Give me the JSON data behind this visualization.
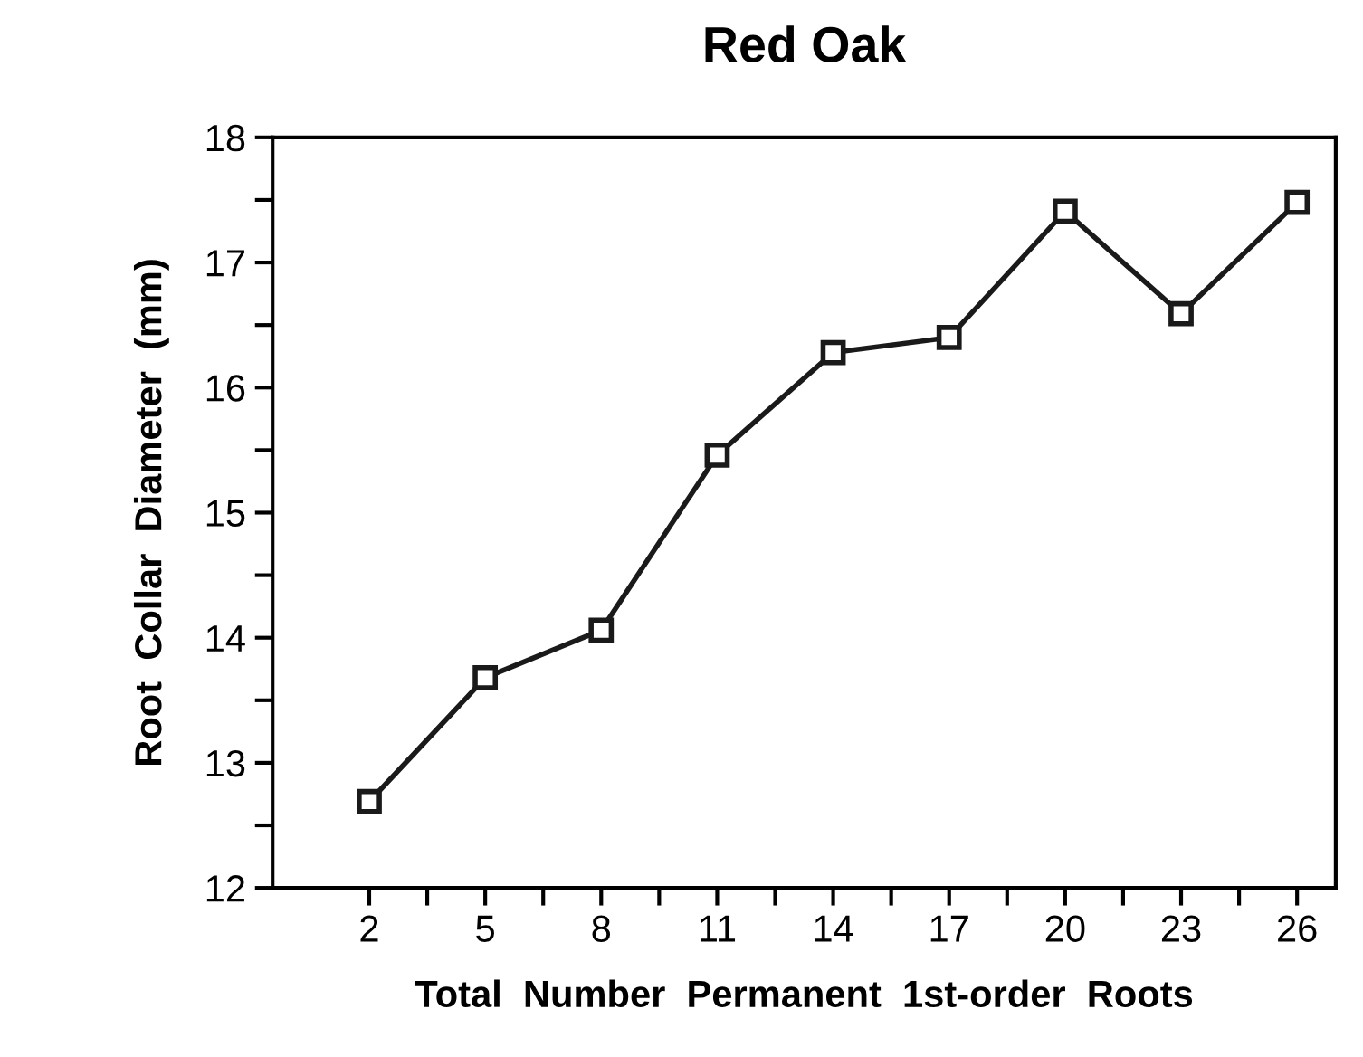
{
  "chart_data": {
    "type": "line",
    "title": "Red Oak",
    "xlabel": "Total  Number  Permanent  1st-order  Roots",
    "ylabel": "Root  Collar  Diameter  (mm)",
    "x": [
      2,
      5,
      8,
      11,
      14,
      17,
      20,
      23,
      26
    ],
    "series": [
      {
        "color": "#1a1a1a",
        "values": [
          12.69,
          13.68,
          14.06,
          15.46,
          16.28,
          16.4,
          17.41,
          16.59,
          17.48
        ]
      }
    ],
    "marker": "square",
    "line_style": "solid",
    "grid": false,
    "xlim": [
      -0.5,
      27
    ],
    "xticks": [
      2,
      {
        "value": 3.5,
        "label": null
      },
      5,
      {
        "value": 6.5,
        "label": null
      },
      8,
      {
        "value": 9.5,
        "label": null
      },
      11,
      {
        "value": 12.5,
        "label": null
      },
      14,
      {
        "value": 15.5,
        "label": null
      },
      17,
      {
        "value": 18.5,
        "label": null
      },
      20,
      {
        "value": 21.5,
        "label": null
      },
      23,
      {
        "value": 24.5,
        "label": null
      },
      26
    ],
    "ylim": [
      12,
      18
    ],
    "yticks": [
      12,
      {
        "value": 12.5,
        "label": null
      },
      13,
      {
        "value": 13.5,
        "label": null
      },
      14,
      {
        "value": 14.5,
        "label": null
      },
      15,
      {
        "value": 15.5,
        "label": null
      },
      16,
      {
        "value": 16.5,
        "label": null
      },
      17,
      {
        "value": 17.5,
        "label": null
      },
      18
    ]
  }
}
